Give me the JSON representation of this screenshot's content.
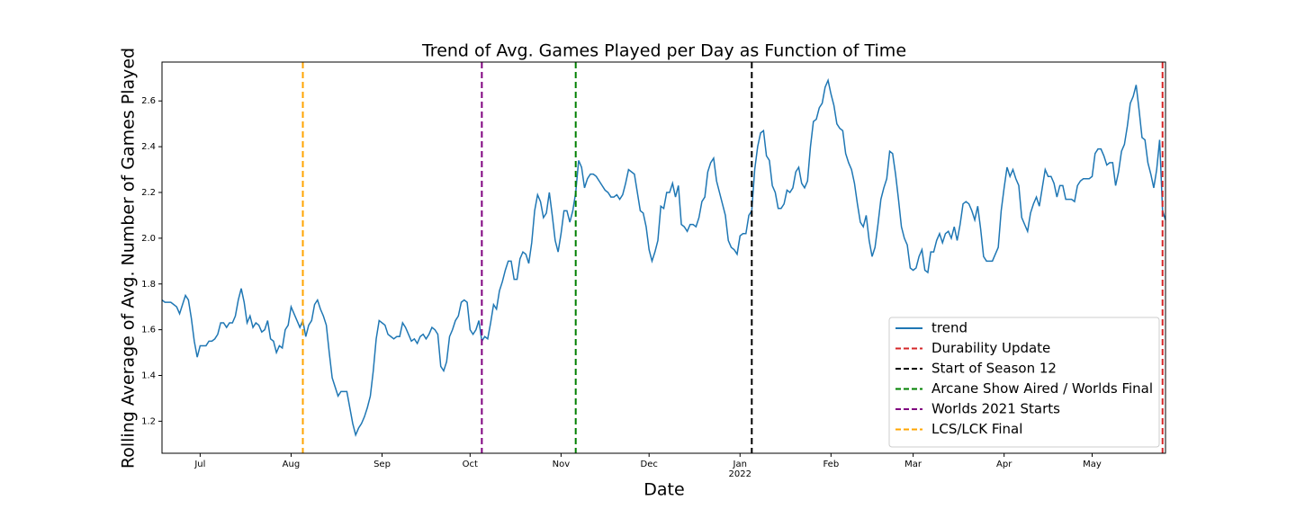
{
  "chart_data": {
    "type": "line",
    "title": "Trend of Avg. Games Played per Day as Function of Time",
    "xlabel": "Date",
    "ylabel": "Rolling Average of Avg. Number of Games Played",
    "x": [
      0,
      1,
      2,
      3,
      4,
      5,
      6,
      7,
      8,
      9,
      10,
      11,
      12,
      13,
      14,
      15,
      16,
      17,
      18,
      19,
      20,
      21,
      22,
      23,
      24,
      25,
      26,
      27,
      28,
      29,
      30,
      31,
      32,
      33,
      34,
      35,
      36,
      37,
      38,
      39,
      40,
      41,
      42,
      43,
      44,
      45,
      46,
      47,
      48,
      49,
      50,
      51,
      52,
      53,
      54,
      55,
      56,
      57,
      58,
      59,
      60,
      61,
      62,
      63,
      64,
      65,
      66,
      67,
      68,
      69,
      70,
      71,
      72,
      73,
      74,
      75,
      76,
      77,
      78,
      79,
      80,
      81,
      82,
      83,
      84,
      85,
      86,
      87,
      88,
      89,
      90,
      91,
      92,
      93,
      94,
      95,
      96,
      97,
      98,
      99,
      100,
      101,
      102,
      103,
      104,
      105,
      106,
      107,
      108,
      109,
      110,
      111,
      112,
      113,
      114,
      115,
      116,
      117,
      118,
      119,
      120,
      121,
      122,
      123,
      124,
      125,
      126,
      127,
      128,
      129,
      130,
      131,
      132,
      133,
      134,
      135,
      136,
      137,
      138,
      139,
      140,
      141,
      142,
      143,
      144,
      145,
      146,
      147,
      148,
      149,
      150,
      151,
      152,
      153,
      154,
      155,
      156,
      157,
      158,
      159,
      160,
      161,
      162,
      163,
      164,
      165,
      166,
      167,
      168,
      169,
      170,
      171,
      172,
      173,
      174,
      175,
      176,
      177,
      178,
      179,
      180,
      181,
      182,
      183,
      184,
      185,
      186,
      187,
      188,
      189,
      190,
      191,
      192,
      193,
      194,
      195,
      196,
      197,
      198,
      199,
      200,
      201,
      202,
      203,
      204,
      205,
      206,
      207,
      208,
      209,
      210,
      211,
      212,
      213,
      214,
      215,
      216,
      217,
      218,
      219,
      220,
      221,
      222,
      223,
      224,
      225,
      226,
      227,
      228,
      229,
      230,
      231,
      232,
      233,
      234,
      235,
      236,
      237,
      238,
      239,
      240,
      241,
      242,
      243,
      244,
      245,
      246,
      247,
      248,
      249,
      250,
      251,
      252,
      253,
      254,
      255,
      256,
      257,
      258,
      259,
      260,
      261,
      262,
      263,
      264,
      265,
      266,
      267,
      268,
      269,
      270,
      271,
      272,
      273,
      274,
      275,
      276,
      277,
      278,
      279,
      280,
      281,
      282,
      283,
      284,
      285,
      286,
      287,
      288,
      289,
      290,
      291,
      292,
      293,
      294,
      295,
      296,
      297,
      298,
      299,
      300,
      301,
      302,
      303,
      304,
      305,
      306,
      307,
      308,
      309,
      310,
      311,
      312,
      313,
      314,
      315,
      316,
      317,
      318,
      319,
      320,
      321,
      322,
      323,
      324,
      325,
      326,
      327,
      328,
      329,
      330,
      331,
      332,
      333,
      334,
      335,
      336,
      337,
      338,
      339,
      340,
      341,
      342
    ],
    "series": [
      {
        "name": "trend",
        "color": "#1f77b4",
        "values": [
          1.73,
          1.72,
          1.72,
          1.72,
          1.71,
          1.7,
          1.67,
          1.71,
          1.75,
          1.73,
          1.65,
          1.55,
          1.48,
          1.53,
          1.53,
          1.53,
          1.55,
          1.55,
          1.56,
          1.58,
          1.63,
          1.63,
          1.61,
          1.63,
          1.63,
          1.66,
          1.73,
          1.78,
          1.72,
          1.63,
          1.66,
          1.61,
          1.63,
          1.62,
          1.59,
          1.6,
          1.64,
          1.56,
          1.55,
          1.5,
          1.53,
          1.52,
          1.6,
          1.62,
          1.7,
          1.67,
          1.64,
          1.61,
          1.64,
          1.57,
          1.62,
          1.64,
          1.71,
          1.73,
          1.69,
          1.66,
          1.62,
          1.5,
          1.39,
          1.35,
          1.31,
          1.33,
          1.33,
          1.33,
          1.26,
          1.19,
          1.14,
          1.17,
          1.19,
          1.22,
          1.26,
          1.31,
          1.42,
          1.56,
          1.64,
          1.63,
          1.62,
          1.58,
          1.57,
          1.56,
          1.57,
          1.57,
          1.63,
          1.61,
          1.58,
          1.55,
          1.56,
          1.54,
          1.57,
          1.58,
          1.56,
          1.58,
          1.61,
          1.6,
          1.58,
          1.44,
          1.42,
          1.46,
          1.57,
          1.6,
          1.64,
          1.66,
          1.72,
          1.73,
          1.72,
          1.6,
          1.58,
          1.6,
          1.64,
          1.55,
          1.57,
          1.56,
          1.63,
          1.71,
          1.69,
          1.77,
          1.81,
          1.86,
          1.9,
          1.9,
          1.82,
          1.82,
          1.91,
          1.94,
          1.93,
          1.89,
          1.98,
          2.12,
          2.19,
          2.16,
          2.09,
          2.11,
          2.2,
          2.1,
          1.99,
          1.94,
          2.02,
          2.12,
          2.12,
          2.07,
          2.12,
          2.2,
          2.34,
          2.31,
          2.22,
          2.26,
          2.28,
          2.28,
          2.27,
          2.25,
          2.23,
          2.21,
          2.2,
          2.18,
          2.18,
          2.19,
          2.17,
          2.19,
          2.24,
          2.3,
          2.29,
          2.28,
          2.2,
          2.12,
          2.11,
          2.05,
          1.95,
          1.9,
          1.94,
          1.99,
          2.14,
          2.13,
          2.2,
          2.2,
          2.24,
          2.18,
          2.23,
          2.06,
          2.05,
          2.03,
          2.06,
          2.06,
          2.05,
          2.09,
          2.16,
          2.18,
          2.29,
          2.33,
          2.35,
          2.25,
          2.2,
          2.15,
          2.1,
          1.99,
          1.96,
          1.95,
          1.93,
          2.01,
          2.02,
          2.02,
          2.1,
          2.12,
          2.3,
          2.4,
          2.46,
          2.47,
          2.36,
          2.34,
          2.23,
          2.2,
          2.13,
          2.13,
          2.15,
          2.21,
          2.2,
          2.22,
          2.29,
          2.31,
          2.24,
          2.22,
          2.25,
          2.4,
          2.51,
          2.52,
          2.57,
          2.59,
          2.66,
          2.69,
          2.63,
          2.58,
          2.5,
          2.48,
          2.47,
          2.37,
          2.33,
          2.3,
          2.24,
          2.15,
          2.07,
          2.05,
          2.1,
          1.99,
          1.92,
          1.96,
          2.06,
          2.17,
          2.22,
          2.26,
          2.38,
          2.37,
          2.28,
          2.17,
          2.05,
          2.0,
          1.97,
          1.87,
          1.86,
          1.87,
          1.92,
          1.95,
          1.86,
          1.85,
          1.94,
          1.94,
          1.99,
          2.02,
          1.98,
          2.02,
          2.03,
          2.0,
          2.05,
          1.99,
          2.06,
          2.15,
          2.16,
          2.15,
          2.12,
          2.08,
          2.14,
          2.04,
          1.92,
          1.9,
          1.9,
          1.9,
          1.93,
          1.96,
          2.12,
          2.22,
          2.31,
          2.27,
          2.3,
          2.26,
          2.23,
          2.09,
          2.06,
          2.03,
          2.11,
          2.15,
          2.18,
          2.14,
          2.22,
          2.3,
          2.27,
          2.27,
          2.24,
          2.18,
          2.23,
          2.23,
          2.17,
          2.17,
          2.17,
          2.16,
          2.23,
          2.25,
          2.26,
          2.26,
          2.26,
          2.27,
          2.37,
          2.39,
          2.39,
          2.36,
          2.32,
          2.33,
          2.33,
          2.23,
          2.29,
          2.38,
          2.41,
          2.49,
          2.59,
          2.62,
          2.67,
          2.56,
          2.44,
          2.43,
          2.33,
          2.28,
          2.22,
          2.3,
          2.43,
          2.12,
          2.08
        ]
      }
    ],
    "vlines": [
      {
        "name": "Durability Update",
        "color": "#d62728",
        "x": 341
      },
      {
        "name": "Start of Season 12",
        "color": "#000000",
        "x": 201
      },
      {
        "name": "Arcane Show Aired / Worlds Final",
        "color": "#008000",
        "x": 141
      },
      {
        "name": "Worlds 2021 Starts",
        "color": "#800080",
        "x": 109
      },
      {
        "name": "LCS/LCK Final",
        "color": "#ffa500",
        "x": 48
      }
    ],
    "xlim": [
      0,
      342
    ],
    "xticks": [
      {
        "value": 13,
        "label": "Jul"
      },
      {
        "value": 44,
        "label": "Aug"
      },
      {
        "value": 75,
        "label": "Sep"
      },
      {
        "value": 105,
        "label": "Oct"
      },
      {
        "value": 136,
        "label": "Nov"
      },
      {
        "value": 166,
        "label": "Dec"
      },
      {
        "value": 197,
        "label": "Jan",
        "sublabel": "2022"
      },
      {
        "value": 228,
        "label": "Feb"
      },
      {
        "value": 256,
        "label": "Mar"
      },
      {
        "value": 287,
        "label": "Apr"
      },
      {
        "value": 317,
        "label": "May"
      }
    ],
    "ylim": [
      1.06,
      2.77
    ],
    "yticks": [
      1.2,
      1.4,
      1.6,
      1.8,
      {
        "value": 2,
        "label": "2.0"
      },
      2.2,
      2.4,
      2.6
    ],
    "grid": false,
    "legend": "lower right"
  }
}
